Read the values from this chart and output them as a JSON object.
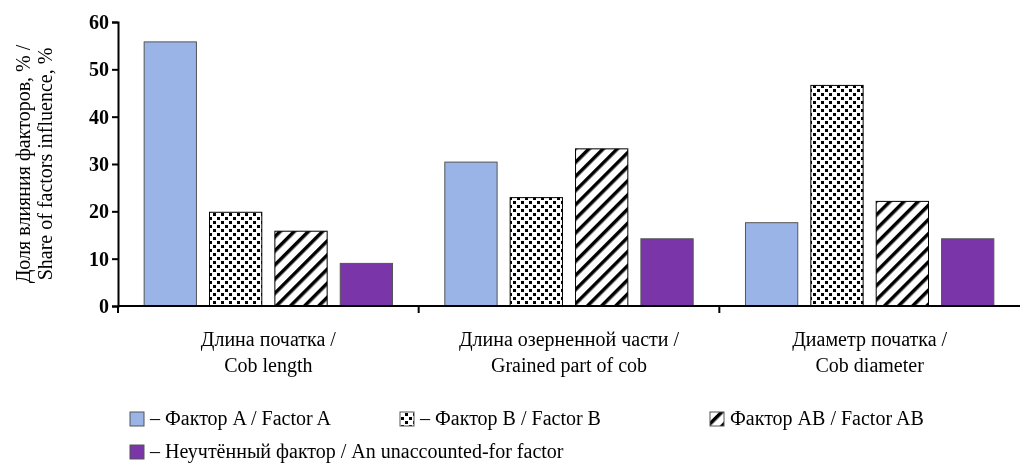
{
  "chart_data": {
    "type": "bar",
    "categories": [
      "Длина початка /\nCob length",
      "Длина озерненной части /\nGrained part of cob",
      "Диаметр початка /\nCob diameter"
    ],
    "ylabel": "Доля влияния факторов, % /\nShare of factors influence, %",
    "ylim": [
      0,
      60
    ],
    "yticks": [
      0,
      10,
      20,
      30,
      40,
      50,
      60
    ],
    "grid": false,
    "legend": "bottom",
    "series": [
      {
        "name": "– Фактор A / Factor A",
        "color": "#9ab4e8",
        "values": [
          55.8,
          30.4,
          17.6
        ]
      },
      {
        "name": "– Фактор B / Factor B",
        "color": "#000000",
        "values": [
          19.8,
          22.9,
          46.6
        ]
      },
      {
        "name": "Фактор AB / Factor AB",
        "color": "#000000",
        "values": [
          15.8,
          33.2,
          22.1
        ]
      },
      {
        "name": "– Неучтённый фактор / An unaccounted-for factor",
        "color": "#7a35a8",
        "values": [
          9.0,
          14.2,
          14.2
        ]
      }
    ]
  }
}
